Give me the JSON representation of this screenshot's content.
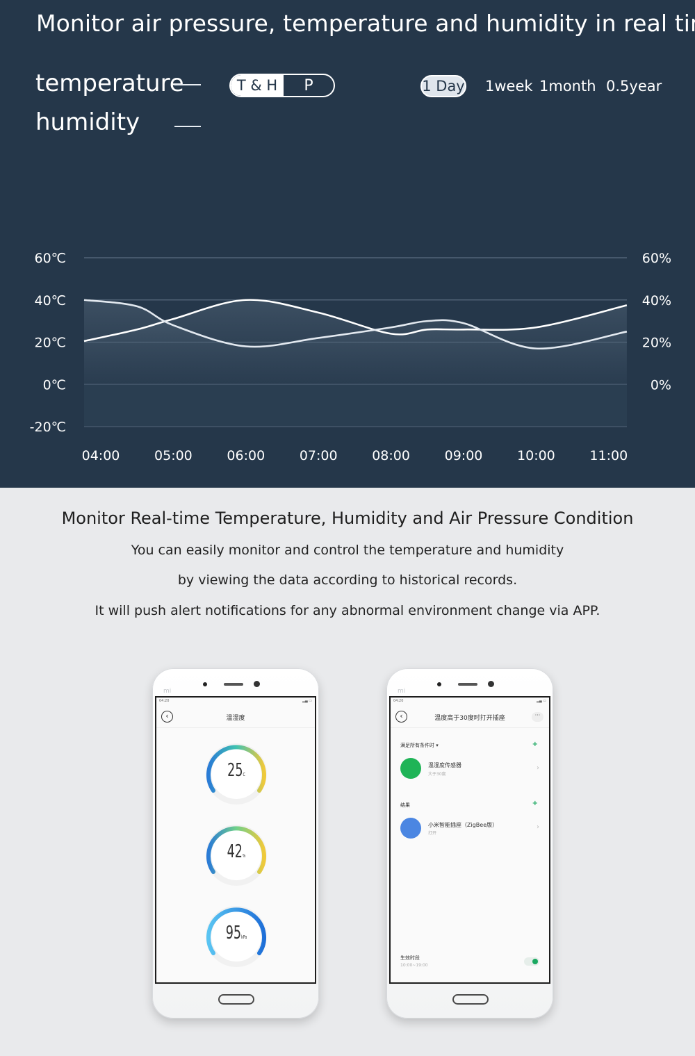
{
  "header": {
    "headline": "Monitor air pressure, temperature and humidity in real time"
  },
  "legend": {
    "temperature": "temperature",
    "humidity": "humidity"
  },
  "mode_toggle": {
    "option_a": "T & H",
    "option_b": "P",
    "selected": "T & H"
  },
  "ranges": {
    "items": [
      "1 Day",
      "1week",
      "1month",
      "0.5year"
    ],
    "selected": "1 Day"
  },
  "chart_data": {
    "type": "line",
    "title": "",
    "x": [
      "04:00",
      "05:00",
      "06:00",
      "07:00",
      "08:00",
      "09:00",
      "10:00",
      "11:00"
    ],
    "y_left_ticks": [
      "60℃",
      "40℃",
      "20℃",
      "0℃",
      "-20℃"
    ],
    "y_right_ticks": [
      "60%",
      "40%",
      "20%",
      "0%"
    ],
    "y_left_range": [
      -20,
      60
    ],
    "y_right_range": [
      -20,
      60
    ],
    "grid": true,
    "series": [
      {
        "name": "temperature",
        "x": [
          3.75,
          4.5,
          5.0,
          6.0,
          7.0,
          8.0,
          8.5,
          9.0,
          10.0,
          11.25
        ],
        "values": [
          20.5,
          26,
          31,
          40,
          34,
          24,
          26,
          26,
          27,
          37.5
        ]
      },
      {
        "name": "humidity",
        "x": [
          3.75,
          4.5,
          5.0,
          6.0,
          7.0,
          8.0,
          8.5,
          9.0,
          10.0,
          11.25
        ],
        "values": [
          40,
          37,
          28,
          18,
          22,
          27,
          30,
          29,
          17,
          25
        ]
      }
    ]
  },
  "description": {
    "title": "Monitor Real-time Temperature, Humidity and Air Pressure Condition",
    "line1": "You can easily monitor and control the temperature and humidity",
    "line2": "by viewing the data according to historical records.",
    "line3": "It will push alert notifications for any abnormal environment change via APP."
  },
  "phone1": {
    "brand": "mi",
    "time": "04:20",
    "title": "温湿度",
    "gauges": [
      {
        "value": "25",
        "unit": "C"
      },
      {
        "value": "42",
        "unit": "%"
      },
      {
        "value": "95",
        "unit": "kPa"
      }
    ]
  },
  "phone2": {
    "brand": "mi",
    "time": "04:20",
    "title": "温度高于30度时打开插座",
    "condition_label": "满足所有条件时 ▾",
    "device1_name": "温湿度传感器",
    "device1_sub": "大于30度",
    "result_label": "结果",
    "device2_name": "小米智能插座（ZigBee版）",
    "device2_sub": "打开",
    "period_label": "生效时段",
    "period_value": "10:00~19:00"
  },
  "colors": {
    "panel": "#25374a",
    "accent_green": "#1aa860",
    "device_blue": "#4b86e2"
  }
}
